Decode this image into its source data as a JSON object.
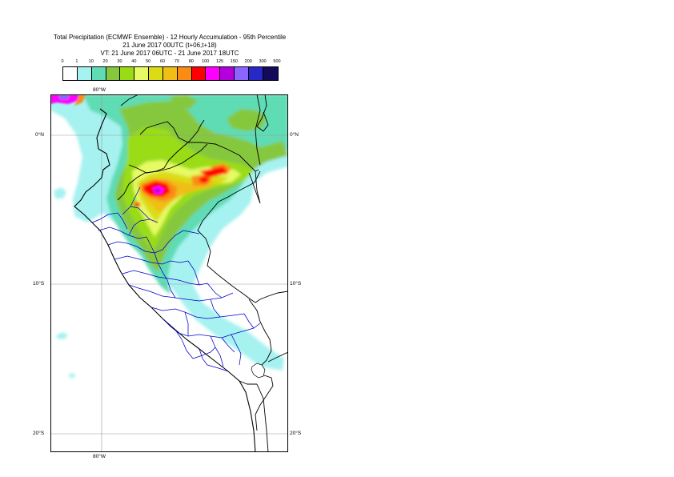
{
  "title": {
    "line1": "Total Precipitation (ECMWF Ensemble) - 12 Hourly Accumulation - 95th Percentile",
    "line2": "21 June 2017 00UTC (t+06,t+18)",
    "line3": "VT: 21 June 2017 06UTC - 21 June 2017 18UTC"
  },
  "legend": {
    "labels": [
      "0",
      "1",
      "10",
      "20",
      "30",
      "40",
      "50",
      "60",
      "70",
      "80",
      "100",
      "125",
      "150",
      "200",
      "300",
      "500"
    ],
    "colors": [
      "#ffffff",
      "#a6f2f0",
      "#5fdcb4",
      "#86c83c",
      "#9adc14",
      "#e6fa64",
      "#dcdc14",
      "#f0be14",
      "#fa8c14",
      "#ff0000",
      "#ff00ff",
      "#b400dc",
      "#8c64ff",
      "#2828c8",
      "#140a5a"
    ]
  },
  "map": {
    "axis_labels": {
      "top_lon": "80°W",
      "bottom_lon": "80°W",
      "lat_0_left": "0°N",
      "lat_0_right": "0°N",
      "lat_10_left": "10°S",
      "lat_10_right": "10°S",
      "lat_20_left": "20°S",
      "lat_20_right": "20°S"
    },
    "colors": {
      "ocean": "#ffffff",
      "coast": "#000000",
      "admin_border": "#0000cc",
      "graticule": "#999999"
    }
  }
}
